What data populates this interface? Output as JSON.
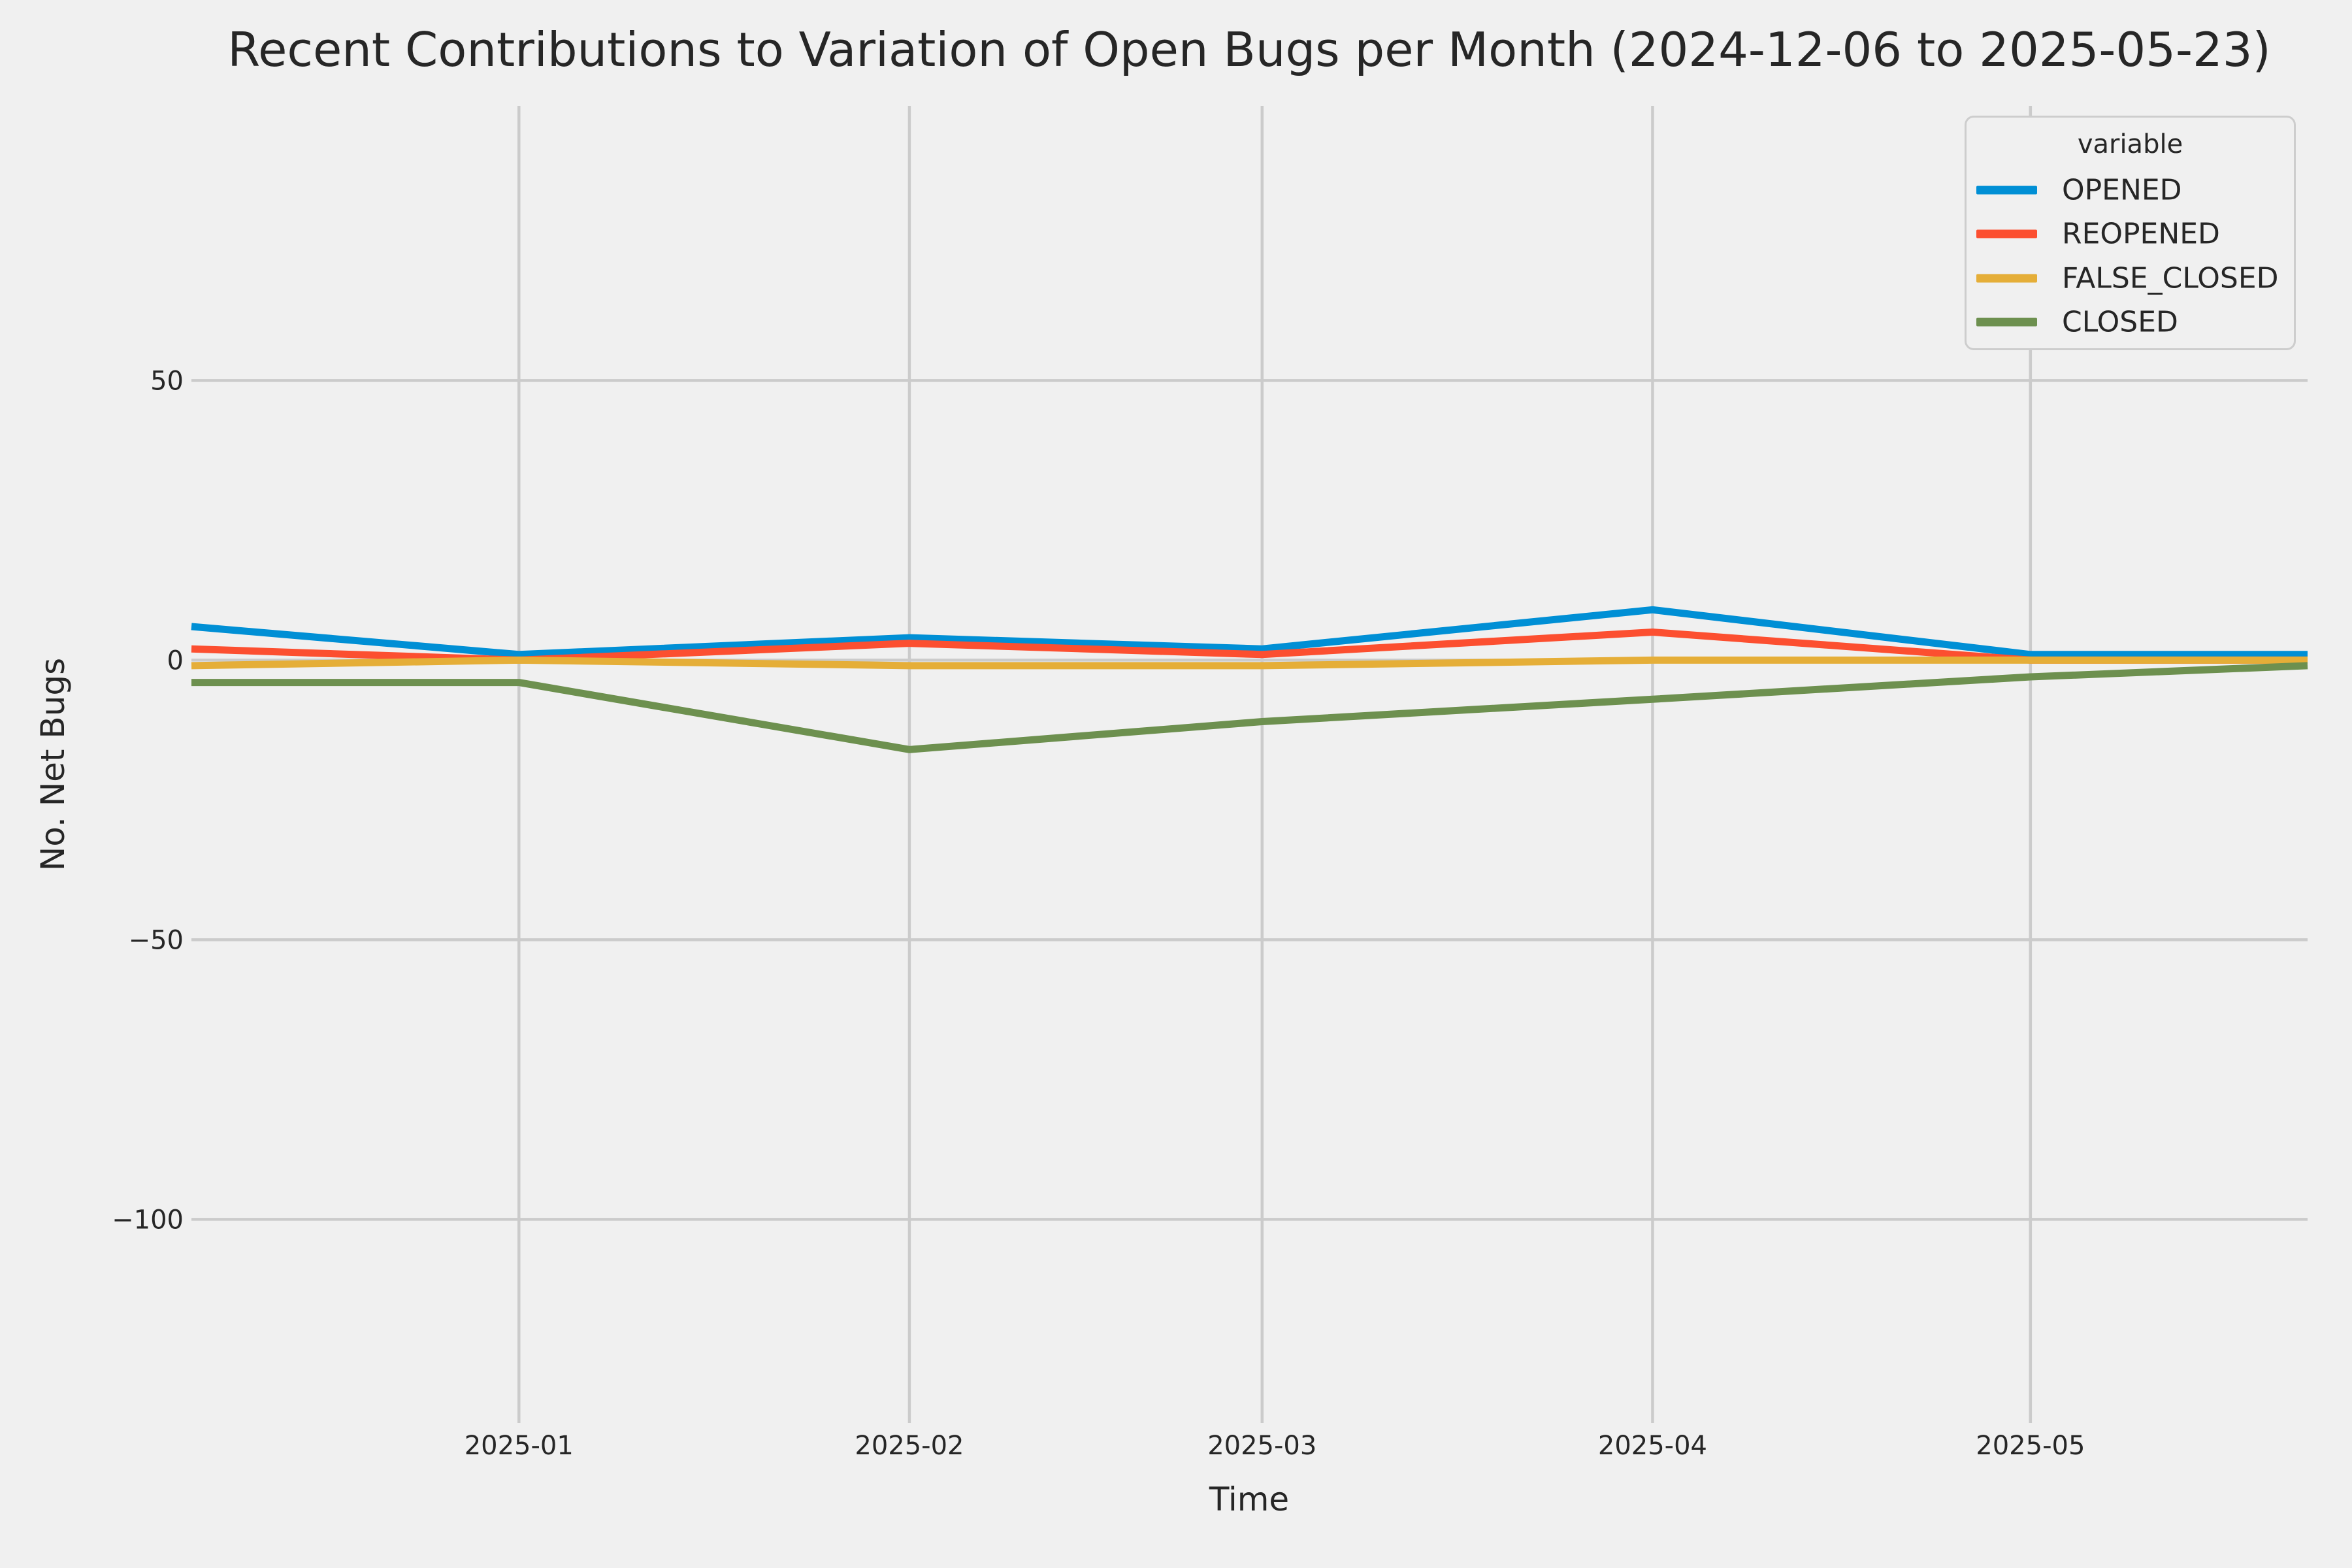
{
  "figure": {
    "title": "Recent Contributions to Variation of Open Bugs per Month (2024-12-06 to 2025-05-23)",
    "background": "#f0f0f0"
  },
  "axis_labels": {
    "x": "Time",
    "y": "No. Net Bugs"
  },
  "legend": {
    "title": "variable",
    "items": [
      {
        "label": "OPENED",
        "color": "#008fd5"
      },
      {
        "label": "REOPENED",
        "color": "#fc4f30"
      },
      {
        "label": "FALSE_CLOSED",
        "color": "#e5ae38"
      },
      {
        "label": "CLOSED",
        "color": "#6d904f"
      }
    ]
  },
  "chart_data": {
    "type": "line",
    "title": "Recent Contributions to Variation of Open Bugs per Month (2024-12-06 to 2025-05-23)",
    "xlabel": "Time",
    "ylabel": "No. Net Bugs",
    "grid": true,
    "legend_position": "upper right",
    "legend_title": "variable",
    "x": [
      "2024-12-06",
      "2025-01-01",
      "2025-02-01",
      "2025-03-01",
      "2025-04-01",
      "2025-05-01",
      "2025-05-23"
    ],
    "x_day_offsets": [
      0,
      26,
      57,
      85,
      116,
      146,
      168
    ],
    "x_total_days": 168,
    "x_ticks": [
      {
        "label": "2025-01",
        "day_offset": 26
      },
      {
        "label": "2025-02",
        "day_offset": 57
      },
      {
        "label": "2025-03",
        "day_offset": 85
      },
      {
        "label": "2025-04",
        "day_offset": 116
      },
      {
        "label": "2025-05",
        "day_offset": 146
      }
    ],
    "y_ticks": [
      {
        "label": "50",
        "value": 50
      },
      {
        "label": "0",
        "value": 0
      },
      {
        "label": "−50",
        "value": -50
      },
      {
        "label": "−100",
        "value": -100
      }
    ],
    "ylim": [
      -136.4,
      99.1
    ],
    "series": [
      {
        "name": "OPENED",
        "color": "#008fd5",
        "values": [
          6,
          1,
          4,
          2,
          9,
          1,
          1
        ]
      },
      {
        "name": "REOPENED",
        "color": "#fc4f30",
        "values": [
          2,
          0,
          3,
          1,
          5,
          0,
          0
        ]
      },
      {
        "name": "FALSE_CLOSED",
        "color": "#e5ae38",
        "values": [
          -1,
          0,
          -1,
          -1,
          0,
          0,
          0
        ]
      },
      {
        "name": "CLOSED",
        "color": "#6d904f",
        "values": [
          -4,
          -4,
          -16,
          -11,
          -7,
          -3,
          -1
        ]
      }
    ]
  },
  "style": {
    "background": "#f0f0f0",
    "grid_color": "#cbcbcb",
    "text_color": "#262626",
    "line_width": 11
  }
}
